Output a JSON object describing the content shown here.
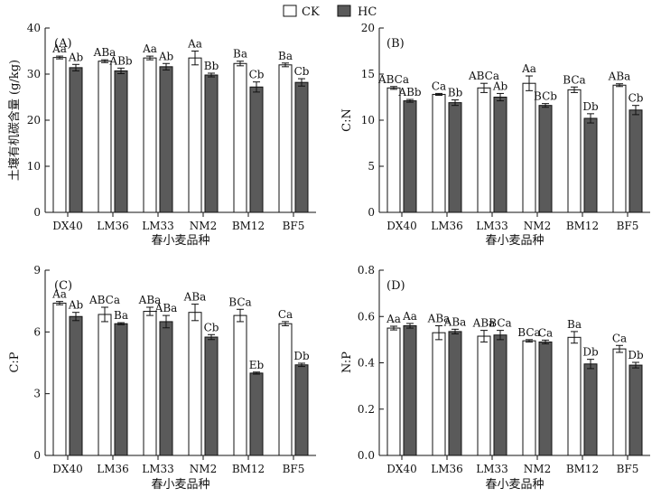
{
  "legend": {
    "ck_label": "CK",
    "hc_label": "HC",
    "ck_color": "#ffffff",
    "hc_color": "#5a5a5a"
  },
  "chart_data": [
    {
      "type": "bar",
      "panel_label": "(A)",
      "categories": [
        "DX40",
        "LM36",
        "LM33",
        "NM2",
        "BM12",
        "BF5"
      ],
      "xlabel": "春小麦品种",
      "ylabel": "土壤有机碳含量 (g/kg)",
      "ylim": [
        0,
        40
      ],
      "yticks": [
        "0",
        "10",
        "20",
        "30",
        "40"
      ],
      "series": [
        {
          "name": "CK",
          "values": [
            33.6,
            32.8,
            33.5,
            33.5,
            32.3,
            32.0
          ],
          "errors": [
            0.3,
            0.3,
            0.4,
            1.5,
            0.5,
            0.4
          ],
          "letters": [
            "Aa",
            "ABa",
            "Aa",
            "Aa",
            "Ba",
            "Ba"
          ]
        },
        {
          "name": "HC",
          "values": [
            31.4,
            30.7,
            31.6,
            29.8,
            27.2,
            28.2
          ],
          "errors": [
            0.7,
            0.6,
            0.7,
            0.4,
            1.1,
            0.8
          ],
          "letters": [
            "Ab",
            "ABb",
            "Ab",
            "Bb",
            "Cb",
            "Cb"
          ]
        }
      ]
    },
    {
      "type": "bar",
      "panel_label": "(B)",
      "categories": [
        "DX40",
        "LM36",
        "LM33",
        "NM2",
        "BM12",
        "BF5"
      ],
      "xlabel": "春小麦品种",
      "ylabel": "C:N",
      "ylim": [
        0,
        20
      ],
      "yticks": [
        "0",
        "5",
        "10",
        "15",
        "20"
      ],
      "series": [
        {
          "name": "CK",
          "values": [
            13.5,
            12.8,
            13.5,
            14.0,
            13.3,
            13.8
          ],
          "errors": [
            0.15,
            0.1,
            0.5,
            0.8,
            0.3,
            0.15
          ],
          "letters": [
            "ABCa",
            "Ca",
            "ABCa",
            "Aa",
            "BCa",
            "ABa"
          ]
        },
        {
          "name": "HC",
          "values": [
            12.1,
            11.9,
            12.5,
            11.6,
            10.2,
            11.1
          ],
          "errors": [
            0.15,
            0.3,
            0.4,
            0.2,
            0.5,
            0.5
          ],
          "letters": [
            "ABb",
            "Bb",
            "Ab",
            "BCb",
            "Db",
            "Cb"
          ]
        }
      ]
    },
    {
      "type": "bar",
      "panel_label": "(C)",
      "categories": [
        "DX40",
        "LM36",
        "LM33",
        "NM2",
        "BM12",
        "BF5"
      ],
      "xlabel": "春小麦品种",
      "ylabel": "C:P",
      "ylim": [
        0,
        9
      ],
      "yticks": [
        "0",
        "3",
        "6",
        "9"
      ],
      "series": [
        {
          "name": "CK",
          "values": [
            7.4,
            6.85,
            7.0,
            6.95,
            6.8,
            6.4
          ],
          "errors": [
            0.08,
            0.35,
            0.2,
            0.4,
            0.3,
            0.1
          ],
          "letters": [
            "Aa",
            "ABCa",
            "ABa",
            "ABa",
            "BCa",
            "Ca"
          ]
        },
        {
          "name": "HC",
          "values": [
            6.75,
            6.4,
            6.5,
            5.75,
            4.0,
            4.4
          ],
          "errors": [
            0.2,
            0.05,
            0.3,
            0.12,
            0.05,
            0.08
          ],
          "letters": [
            "Ab",
            "Ba",
            "ABa",
            "Cb",
            "Eb",
            "Db"
          ]
        }
      ]
    },
    {
      "type": "bar",
      "panel_label": "(D)",
      "categories": [
        "DX40",
        "LM36",
        "LM33",
        "NM2",
        "BM12",
        "BF5"
      ],
      "xlabel": "春小麦品种",
      "ylabel": "N:P",
      "ylim": [
        0,
        0.8
      ],
      "yticks": [
        "0.0",
        "0.2",
        "0.4",
        "0.6",
        "0.8"
      ],
      "series": [
        {
          "name": "CK",
          "values": [
            0.55,
            0.53,
            0.515,
            0.495,
            0.51,
            0.46
          ],
          "errors": [
            0.008,
            0.03,
            0.025,
            0.005,
            0.025,
            0.015
          ],
          "letters": [
            "Aa",
            "ABa",
            "ABa",
            "BCa",
            "Ba",
            "Ca"
          ]
        },
        {
          "name": "HC",
          "values": [
            0.56,
            0.535,
            0.52,
            0.49,
            0.395,
            0.39
          ],
          "errors": [
            0.01,
            0.01,
            0.02,
            0.008,
            0.02,
            0.012
          ],
          "letters": [
            "Aa",
            "ABa",
            "BCa",
            "Ca",
            "Db",
            "Db"
          ]
        }
      ]
    }
  ]
}
